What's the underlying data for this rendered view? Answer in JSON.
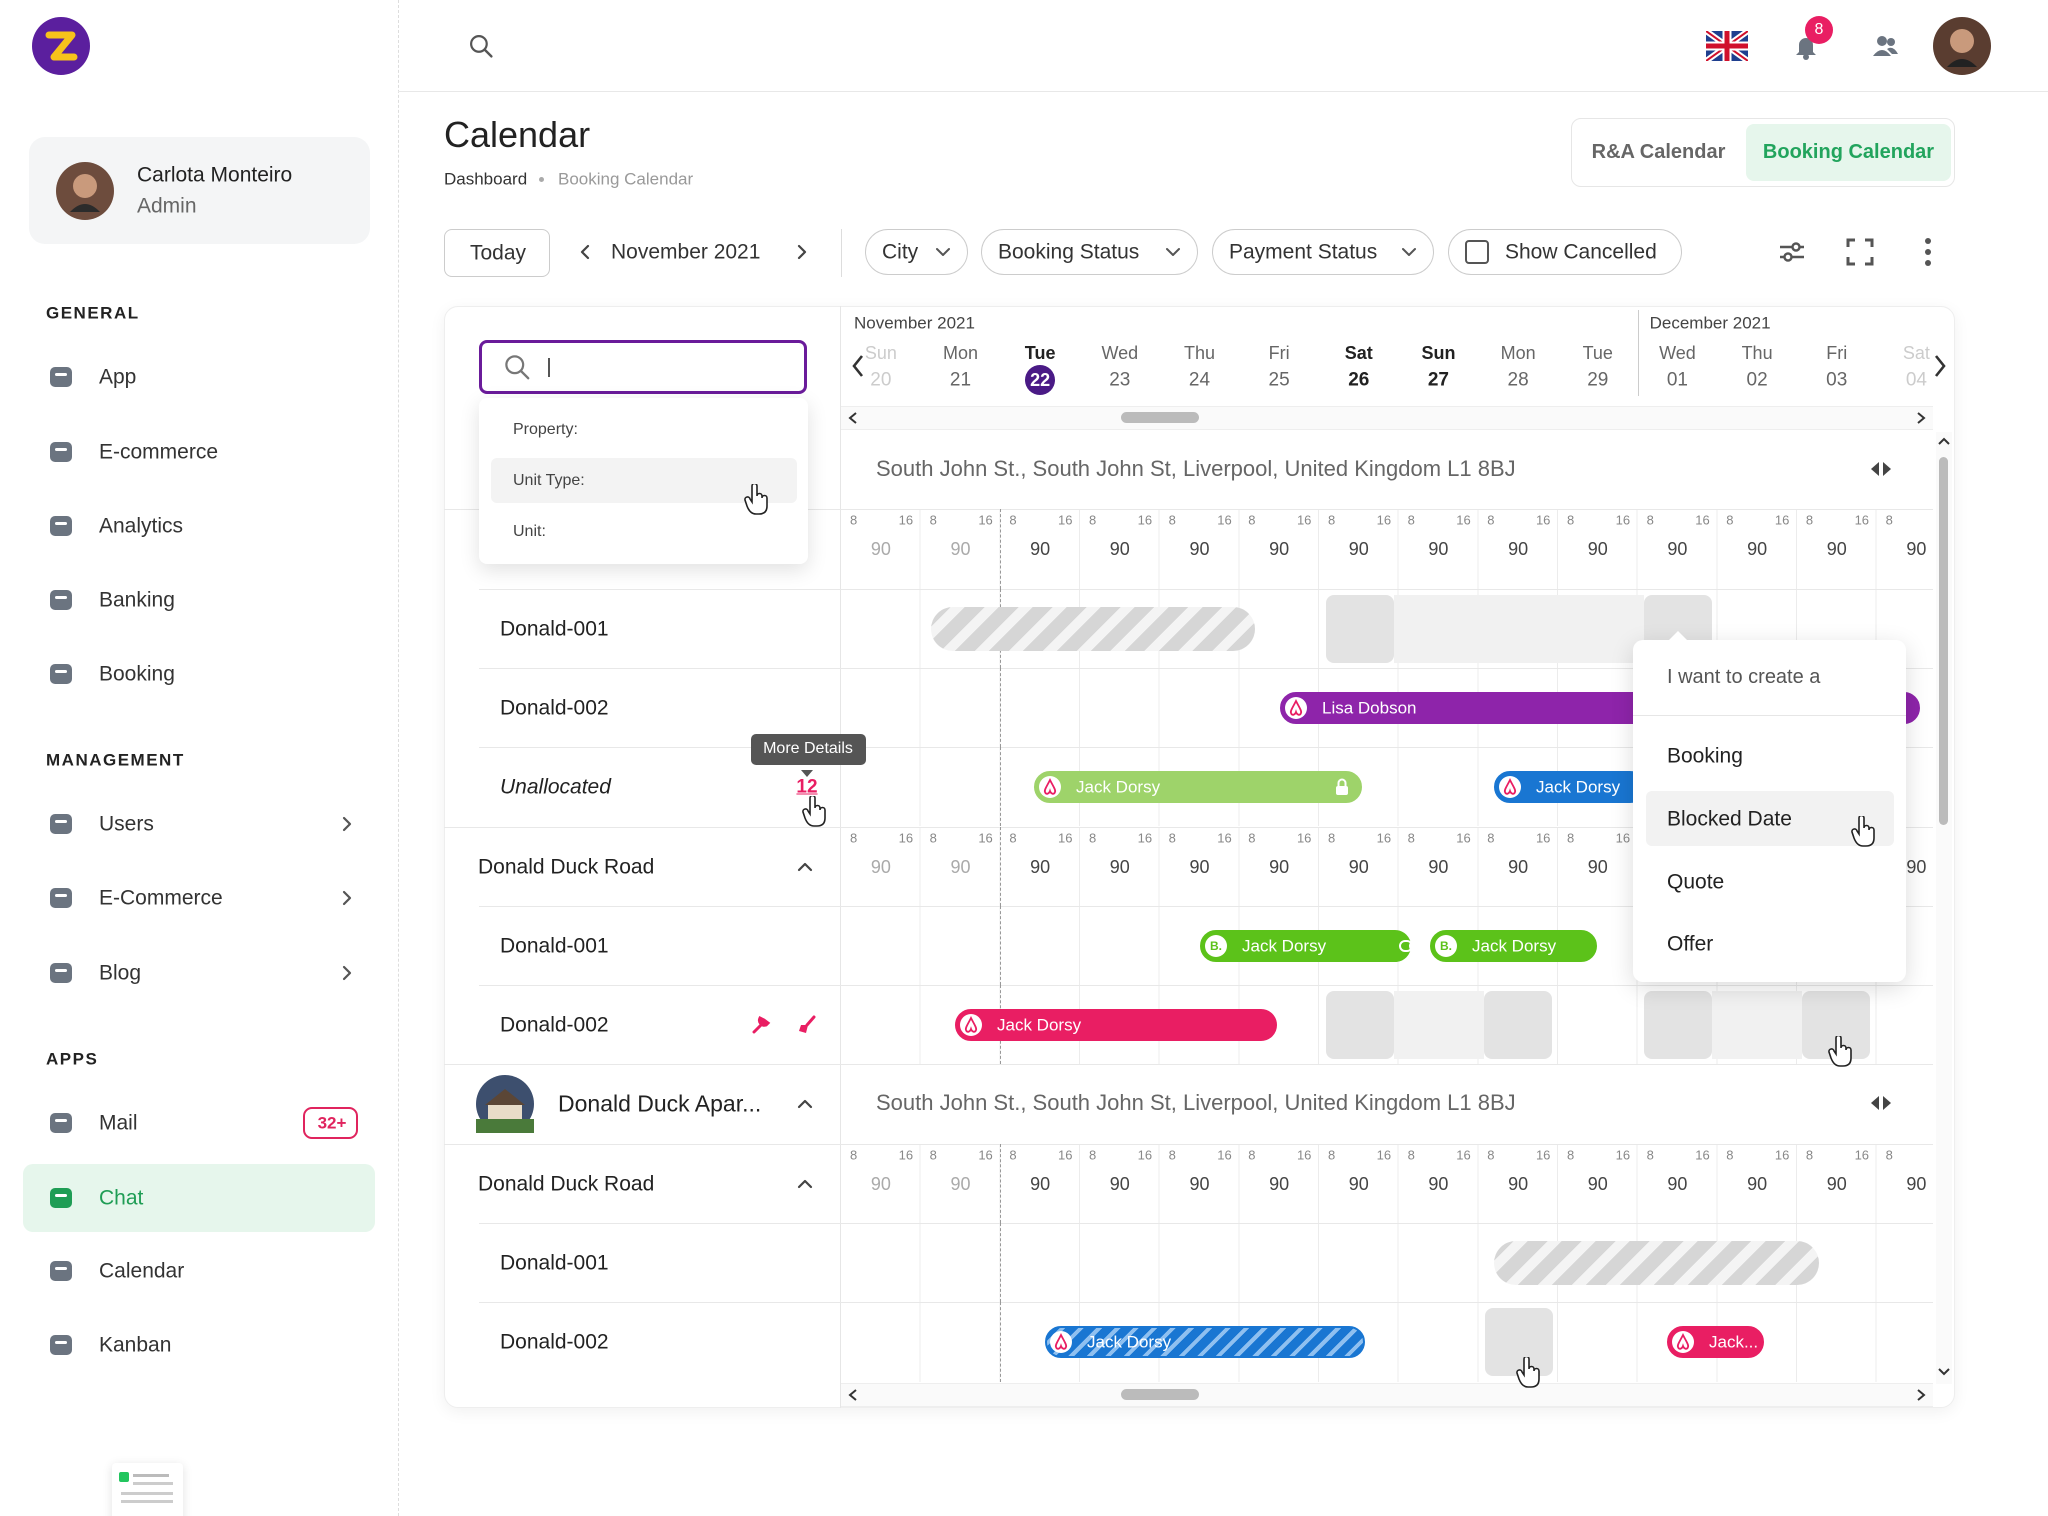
{
  "sidebar": {
    "user": {
      "name": "Carlota Monteiro",
      "role": "Admin"
    },
    "sections": [
      {
        "title": "GENERAL",
        "items": [
          {
            "label": "App"
          },
          {
            "label": "E-commerce"
          },
          {
            "label": "Analytics"
          },
          {
            "label": "Banking"
          },
          {
            "label": "Booking"
          }
        ]
      },
      {
        "title": "MANAGEMENT",
        "items": [
          {
            "label": "Users",
            "expandable": true
          },
          {
            "label": "E-Commerce",
            "expandable": true
          },
          {
            "label": "Blog",
            "expandable": true
          }
        ]
      },
      {
        "title": "APPS",
        "items": [
          {
            "label": "Mail",
            "badge": "32+"
          },
          {
            "label": "Chat",
            "active": true
          },
          {
            "label": "Calendar"
          },
          {
            "label": "Kanban"
          }
        ]
      }
    ]
  },
  "topbar": {
    "notification_count": 8
  },
  "header": {
    "title": "Calendar",
    "breadcrumb": [
      "Dashboard",
      "Booking Calendar"
    ],
    "tabs": [
      "R&A Calendar",
      "Booking Calendar"
    ],
    "active_tab": 1
  },
  "toolbar": {
    "today": "Today",
    "period": "November 2021",
    "filters": [
      "City",
      "Booking Status",
      "Payment Status"
    ],
    "show_cancelled": "Show Cancelled"
  },
  "timeline": {
    "months": [
      "November 2021",
      "December 2021"
    ],
    "days": [
      {
        "weekday": "Sun",
        "date": "20",
        "rate": 90
      },
      {
        "weekday": "Mon",
        "date": "21",
        "rate": 90
      },
      {
        "weekday": "Tue",
        "date": "22",
        "rate": 90,
        "today": true
      },
      {
        "weekday": "Wed",
        "date": "23",
        "rate": 90
      },
      {
        "weekday": "Thu",
        "date": "24",
        "rate": 90
      },
      {
        "weekday": "Fri",
        "date": "25",
        "rate": 90
      },
      {
        "weekday": "Sat",
        "date": "26",
        "rate": 90
      },
      {
        "weekday": "Sun",
        "date": "27",
        "rate": 90
      },
      {
        "weekday": "Mon",
        "date": "28",
        "rate": 90
      },
      {
        "weekday": "Tue",
        "date": "29",
        "rate": 90
      },
      {
        "weekday": "Wed",
        "date": "01",
        "rate": 90
      },
      {
        "weekday": "Thu",
        "date": "02",
        "rate": 90
      },
      {
        "weekday": "Fri",
        "date": "03",
        "rate": 90
      },
      {
        "weekday": "Sat",
        "date": "04",
        "rate": 90
      }
    ],
    "hour_marks": [
      8,
      16
    ]
  },
  "search": {
    "options": [
      "Property:",
      "Unit Type:",
      "Unit:"
    ],
    "highlighted": 1
  },
  "properties": [
    {
      "address": "South John St., South John St, Liverpool, United Kingdom L1 8BJ",
      "groups": [
        {
          "units": [
            {
              "name": "Donald-001"
            },
            {
              "name": "Donald-002",
              "bookings": [
                {
                  "guest": "Lisa Dobson",
                  "color": "#8e24aa",
                  "source": "airbnb"
                }
              ]
            },
            {
              "name": "Unallocated",
              "count": 12,
              "count_tooltip": "More Details",
              "bookings": [
                {
                  "guest": "Jack Dorsy",
                  "color": "#9ed36a",
                  "source": "airbnb",
                  "locked": true
                },
                {
                  "guest": "Jack Dorsy",
                  "color": "#1976d2",
                  "source": "airbnb"
                }
              ]
            }
          ]
        },
        {
          "name": "Donald Duck Road",
          "units": [
            {
              "name": "Donald-001",
              "bookings": [
                {
                  "guest": "Jack Dorsy",
                  "color": "#5cc21a",
                  "badge": "B."
                },
                {
                  "guest": "Jack Dorsy",
                  "color": "#5cc21a",
                  "badge": "B."
                }
              ]
            },
            {
              "name": "Donald-002",
              "bookings": [
                {
                  "guest": "Jack Dorsy",
                  "color": "#e91e63",
                  "source": "airbnb"
                }
              ]
            }
          ]
        }
      ]
    },
    {
      "name": "Donald Duck Apar...",
      "address": "South John St., South John St, Liverpool, United Kingdom L1 8BJ",
      "groups": [
        {
          "name": "Donald Duck Road",
          "units": [
            {
              "name": "Donald-001"
            },
            {
              "name": "Donald-002",
              "bookings": [
                {
                  "guest": "Jack Dorsy",
                  "color": "#1976d2",
                  "source": "airbnb",
                  "pattern": "hatched"
                },
                {
                  "guest": "Jack...",
                  "color": "#e91e63",
                  "source": "airbnb"
                }
              ]
            }
          ]
        }
      ]
    }
  ],
  "context_menu": {
    "title": "I want to create a",
    "options": [
      "Booking",
      "Blocked Date",
      "Quote",
      "Offer"
    ],
    "highlighted": 1
  }
}
